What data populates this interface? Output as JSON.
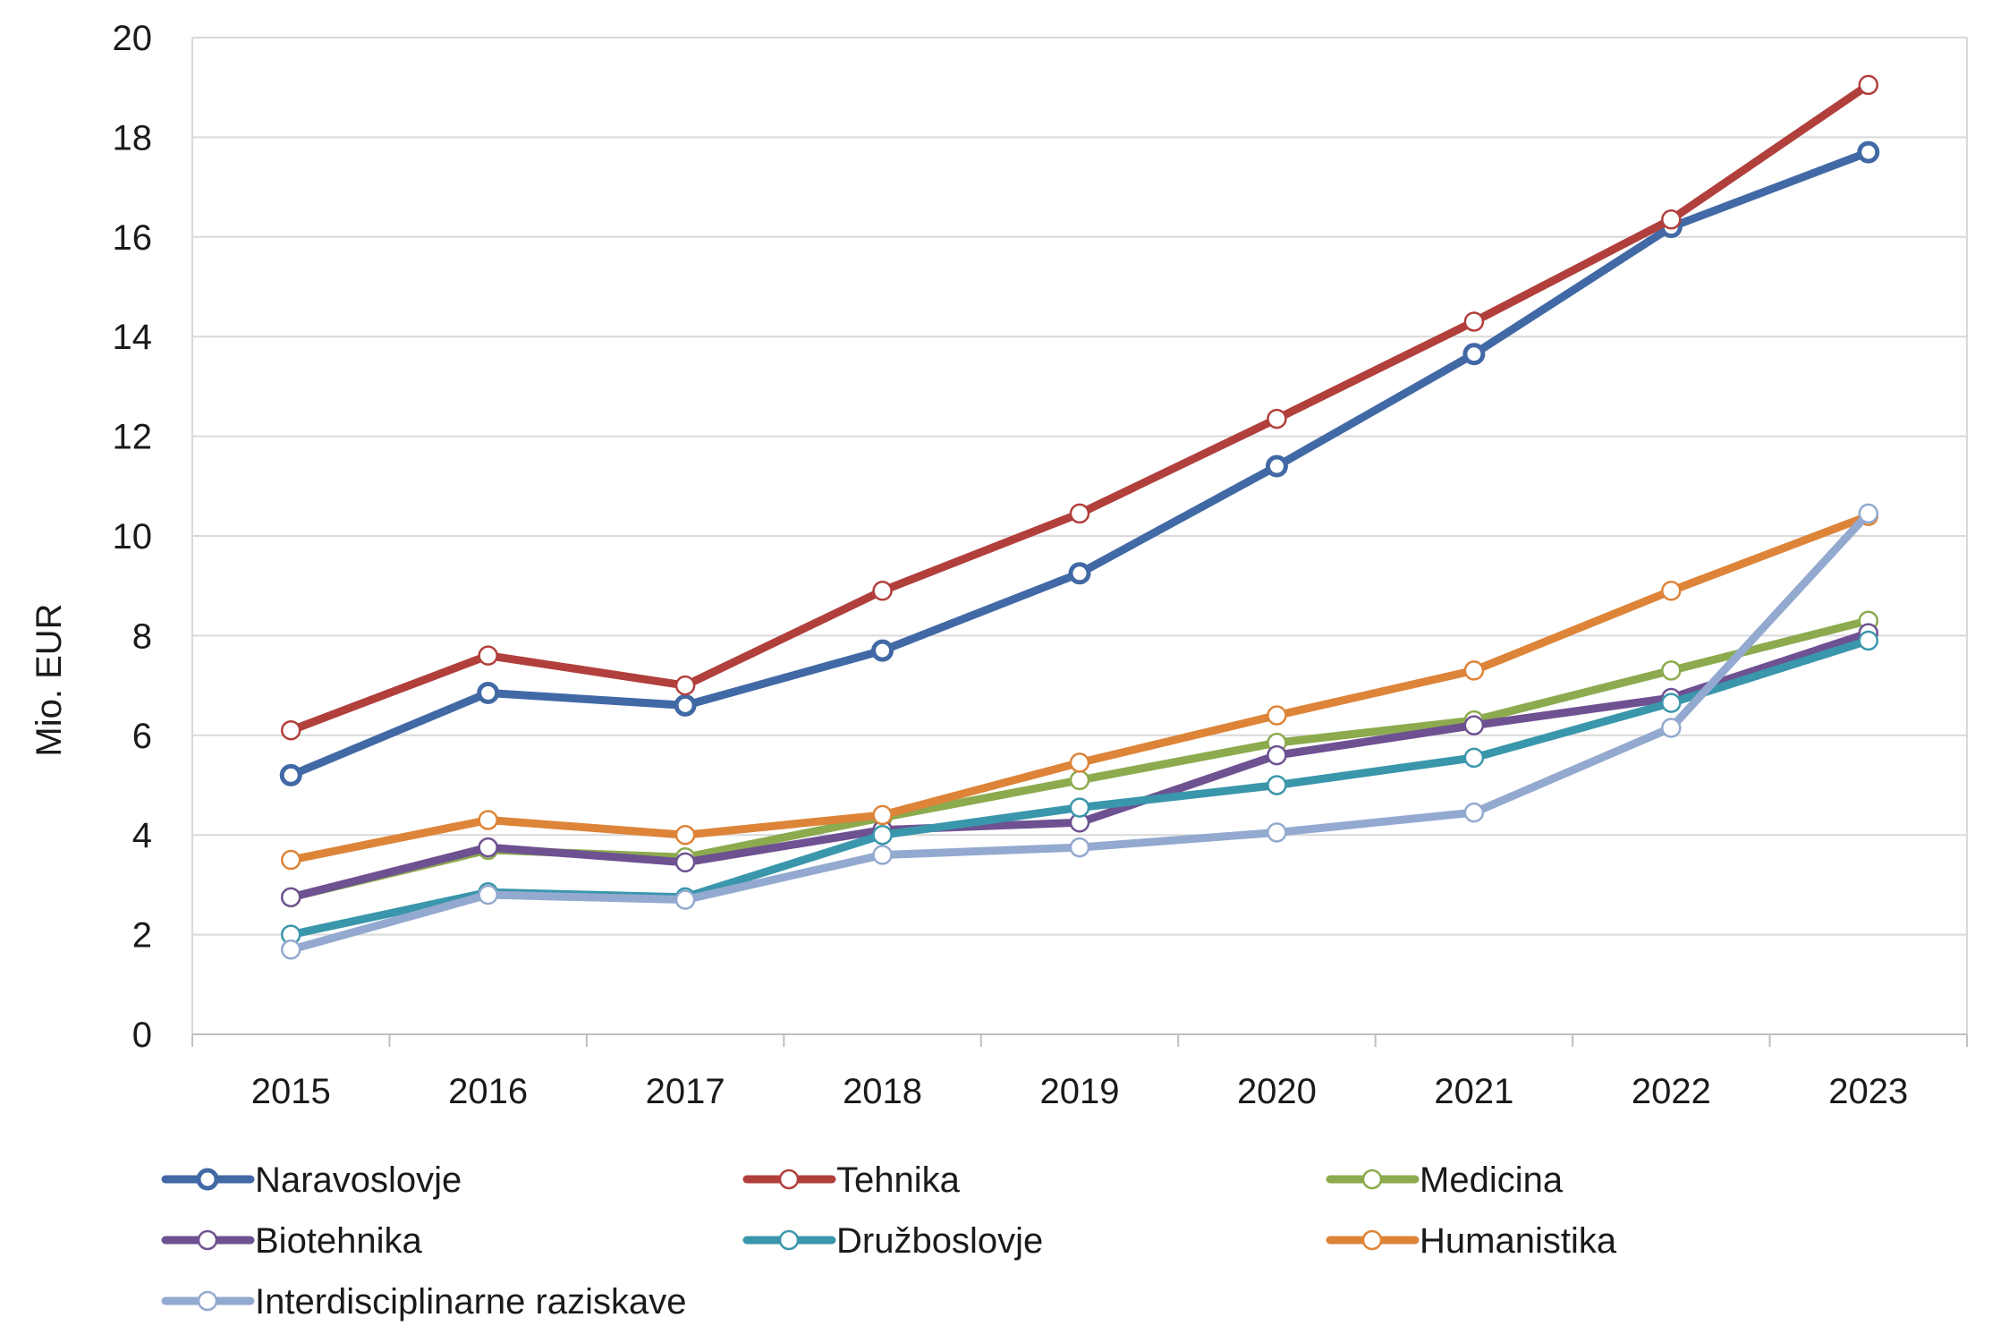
{
  "chart_data": {
    "type": "line",
    "title": "",
    "xlabel": "",
    "ylabel": "Mio. EUR",
    "ylim": [
      0,
      20
    ],
    "yticks": [
      "0",
      "2",
      "4",
      "6",
      "8",
      "10",
      "12",
      "14",
      "16",
      "18",
      "20"
    ],
    "categories": [
      "2015",
      "2016",
      "2017",
      "2018",
      "2019",
      "2020",
      "2021",
      "2022",
      "2023"
    ],
    "grid": true,
    "legend_position": "bottom",
    "series": [
      {
        "name": "Naravoslovje",
        "color": "#4169a5",
        "values": [
          5.2,
          6.85,
          6.6,
          7.7,
          9.25,
          11.4,
          13.65,
          16.2,
          17.7
        ]
      },
      {
        "name": "Tehnika",
        "color": "#b13f3c",
        "values": [
          6.1,
          7.6,
          7.0,
          8.9,
          10.45,
          12.35,
          14.3,
          16.35,
          19.05
        ]
      },
      {
        "name": "Medicina",
        "color": "#8caa4e",
        "values": [
          2.75,
          3.7,
          3.55,
          4.35,
          5.1,
          5.85,
          6.3,
          7.3,
          8.3
        ]
      },
      {
        "name": "Biotehnika",
        "color": "#6e5191",
        "values": [
          2.75,
          3.75,
          3.45,
          4.1,
          4.25,
          5.6,
          6.2,
          6.75,
          8.05
        ]
      },
      {
        "name": "Družboslovje",
        "color": "#3a96ab",
        "values": [
          2.0,
          2.85,
          2.75,
          4.0,
          4.55,
          5.0,
          5.55,
          6.65,
          7.9
        ]
      },
      {
        "name": "Humanistika",
        "color": "#dd8439",
        "values": [
          3.5,
          4.3,
          4.0,
          4.4,
          5.45,
          6.4,
          7.3,
          8.9,
          10.4
        ]
      },
      {
        "name": "Interdisciplinarne raziskave",
        "color": "#93a9cf",
        "values": [
          1.7,
          2.8,
          2.7,
          3.6,
          3.75,
          4.05,
          4.45,
          6.15,
          10.45
        ]
      }
    ]
  }
}
